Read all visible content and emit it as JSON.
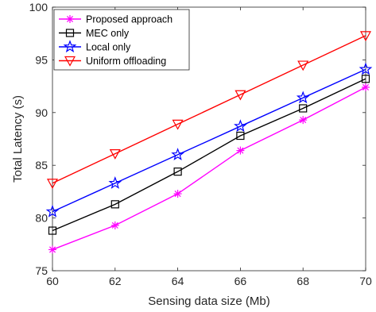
{
  "chart_data": {
    "type": "line",
    "xlabel": "Sensing data size (Mb)",
    "ylabel": "Total Latency (s)",
    "xlim": [
      60,
      70
    ],
    "ylim": [
      75,
      100
    ],
    "x": [
      60,
      62,
      64,
      66,
      68,
      70
    ],
    "xticks": [
      "60",
      "62",
      "64",
      "66",
      "68",
      "70"
    ],
    "yticks": [
      "75",
      "80",
      "85",
      "90",
      "95",
      "100"
    ],
    "grid": false,
    "legend_position": "top-left",
    "series": [
      {
        "name": "Proposed approach",
        "color": "#ff00ff",
        "marker": "asterisk",
        "values": [
          77.0,
          79.3,
          82.3,
          86.4,
          89.3,
          92.4
        ]
      },
      {
        "name": "MEC only",
        "color": "#000000",
        "marker": "square",
        "values": [
          78.8,
          81.3,
          84.4,
          87.8,
          90.4,
          93.2
        ]
      },
      {
        "name": "Local only",
        "color": "#0000ff",
        "marker": "star",
        "values": [
          80.6,
          83.3,
          86.0,
          88.7,
          91.4,
          94.1
        ]
      },
      {
        "name": "Uniform offloading",
        "color": "#ff0000",
        "marker": "triangle-down",
        "values": [
          83.3,
          86.1,
          88.9,
          91.7,
          94.5,
          97.3
        ]
      }
    ]
  }
}
